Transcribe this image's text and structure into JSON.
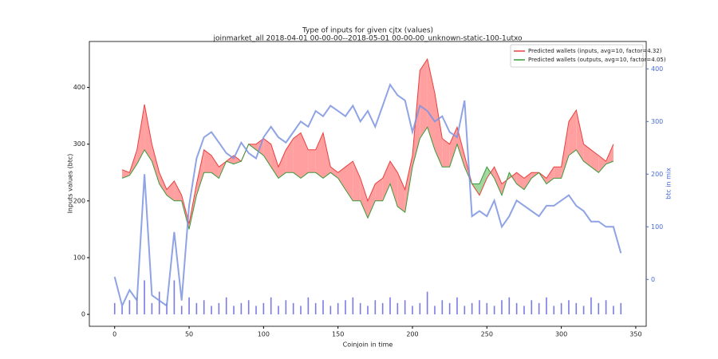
{
  "chart_data": {
    "type": "line",
    "title": "Type of inputs for given cjtx (values)",
    "subtitle": "joinmarket_all 2018-04-01 00-00-00--2018-05-01 00-00-00_unknown-static-100-1utxo",
    "xlabel": "Coinjoin in time",
    "ylabel": "Inputs values (btc)",
    "y2label": "btc in mix",
    "xlim": [
      -17,
      357
    ],
    "ylim": [
      -21,
      481
    ],
    "y2lim": [
      -89,
      452
    ],
    "xticks": [
      0,
      50,
      100,
      150,
      200,
      250,
      300,
      350
    ],
    "yticks": [
      0,
      100,
      200,
      300,
      400
    ],
    "y2ticks": [
      0,
      100,
      200,
      300,
      400
    ],
    "legend": "upper right",
    "series": [
      {
        "name": "Predicted wallets (inputs, avg=10, factor=4.32)",
        "color": "#e8413f",
        "fill": "#ff9f9f",
        "x": [
          5,
          10,
          15,
          20,
          25,
          30,
          35,
          40,
          45,
          50,
          55,
          60,
          65,
          70,
          75,
          80,
          85,
          90,
          95,
          100,
          105,
          110,
          115,
          120,
          125,
          130,
          135,
          140,
          145,
          150,
          155,
          160,
          165,
          170,
          175,
          180,
          185,
          190,
          195,
          200,
          205,
          210,
          215,
          220,
          225,
          230,
          235,
          240,
          245,
          250,
          255,
          260,
          265,
          270,
          275,
          280,
          285,
          290,
          295,
          300,
          305,
          310,
          315,
          320,
          325,
          330,
          335
        ],
        "values": [
          255,
          250,
          290,
          370,
          300,
          250,
          220,
          235,
          210,
          160,
          230,
          290,
          280,
          260,
          270,
          280,
          270,
          300,
          300,
          310,
          300,
          260,
          290,
          310,
          320,
          290,
          290,
          320,
          260,
          250,
          260,
          270,
          240,
          200,
          230,
          240,
          270,
          250,
          220,
          280,
          430,
          450,
          390,
          310,
          300,
          330,
          280,
          230,
          210,
          240,
          260,
          230,
          240,
          250,
          240,
          250,
          250,
          240,
          260,
          260,
          340,
          360,
          300,
          290,
          280,
          270,
          300
        ]
      },
      {
        "name": "Predicted wallets (outputs, avg=10, factor=4.05)",
        "color": "#3a9a3a",
        "fill": "#9fd89f",
        "x": [
          5,
          10,
          15,
          20,
          25,
          30,
          35,
          40,
          45,
          50,
          55,
          60,
          65,
          70,
          75,
          80,
          85,
          90,
          95,
          100,
          105,
          110,
          115,
          120,
          125,
          130,
          135,
          140,
          145,
          150,
          155,
          160,
          165,
          170,
          175,
          180,
          185,
          190,
          195,
          200,
          205,
          210,
          215,
          220,
          225,
          230,
          235,
          240,
          245,
          250,
          255,
          260,
          265,
          270,
          275,
          280,
          285,
          290,
          295,
          300,
          305,
          310,
          315,
          320,
          325,
          330,
          335
        ],
        "values": [
          240,
          245,
          265,
          290,
          270,
          230,
          210,
          200,
          200,
          150,
          210,
          250,
          250,
          240,
          270,
          265,
          270,
          300,
          290,
          280,
          260,
          240,
          250,
          250,
          240,
          250,
          250,
          240,
          250,
          240,
          220,
          200,
          200,
          170,
          200,
          200,
          230,
          190,
          180,
          260,
          310,
          330,
          290,
          260,
          260,
          300,
          260,
          230,
          230,
          260,
          240,
          210,
          250,
          230,
          220,
          240,
          250,
          230,
          240,
          240,
          280,
          290,
          270,
          260,
          250,
          265,
          270
        ]
      },
      {
        "color": "#7b93e0",
        "axis": "y2",
        "x": [
          0,
          5,
          10,
          15,
          20,
          25,
          30,
          35,
          40,
          45,
          50,
          55,
          60,
          65,
          70,
          75,
          80,
          85,
          90,
          95,
          100,
          105,
          110,
          115,
          120,
          125,
          130,
          135,
          140,
          145,
          150,
          155,
          160,
          165,
          170,
          175,
          180,
          185,
          190,
          195,
          200,
          205,
          210,
          215,
          220,
          225,
          230,
          235,
          240,
          245,
          250,
          255,
          260,
          265,
          270,
          275,
          280,
          285,
          290,
          295,
          300,
          305,
          310,
          315,
          320,
          325,
          330,
          335,
          340
        ],
        "values": [
          5,
          -50,
          -20,
          -40,
          200,
          -30,
          -40,
          -50,
          90,
          -40,
          140,
          230,
          270,
          280,
          260,
          240,
          230,
          260,
          240,
          230,
          270,
          290,
          270,
          260,
          280,
          300,
          290,
          320,
          310,
          330,
          320,
          310,
          330,
          300,
          320,
          290,
          330,
          370,
          350,
          340,
          280,
          330,
          320,
          300,
          310,
          280,
          270,
          340,
          120,
          130,
          120,
          150,
          100,
          120,
          150,
          140,
          130,
          120,
          140,
          140,
          150,
          160,
          140,
          130,
          110,
          110,
          100,
          100,
          50
        ]
      }
    ],
    "bars": {
      "color": "#5a5ae0",
      "x": [
        0,
        5,
        10,
        15,
        20,
        25,
        30,
        35,
        40,
        45,
        50,
        55,
        60,
        65,
        70,
        75,
        80,
        85,
        90,
        95,
        100,
        105,
        110,
        115,
        120,
        125,
        130,
        135,
        140,
        145,
        150,
        155,
        160,
        165,
        170,
        175,
        180,
        185,
        190,
        195,
        200,
        205,
        210,
        215,
        220,
        225,
        230,
        235,
        240,
        245,
        250,
        255,
        260,
        265,
        270,
        275,
        280,
        285,
        290,
        295,
        300,
        305,
        310,
        315,
        320,
        325,
        330,
        335,
        340
      ],
      "values": [
        20,
        15,
        25,
        30,
        60,
        20,
        40,
        20,
        60,
        15,
        30,
        20,
        25,
        15,
        20,
        30,
        15,
        20,
        25,
        15,
        20,
        30,
        15,
        25,
        20,
        15,
        30,
        20,
        25,
        15,
        20,
        25,
        30,
        20,
        15,
        25,
        20,
        30,
        20,
        25,
        15,
        20,
        40,
        15,
        25,
        20,
        30,
        15,
        20,
        25,
        20,
        15,
        25,
        30,
        20,
        15,
        25,
        20,
        30,
        15,
        20,
        25,
        20,
        15,
        30,
        20,
        25,
        15,
        20
      ]
    }
  }
}
